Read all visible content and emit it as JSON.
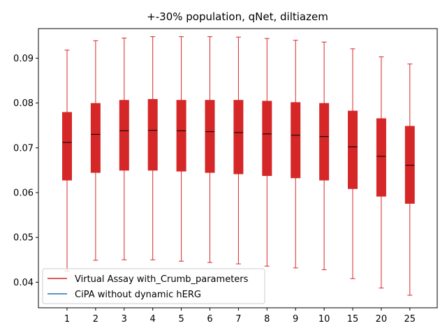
{
  "chart_data": {
    "type": "boxplot",
    "title": "+-30% population, qNet, diltiazem",
    "xlabel": "",
    "ylabel": "",
    "categories": [
      "1",
      "2",
      "3",
      "4",
      "5",
      "6",
      "7",
      "8",
      "9",
      "10",
      "15",
      "20",
      "25"
    ],
    "ylim": [
      0.0343,
      0.0966
    ],
    "yticks": [
      "0.04",
      "0.05",
      "0.06",
      "0.07",
      "0.08",
      "0.09"
    ],
    "grid": false,
    "legend_position": "lower-left",
    "series": [
      {
        "name": "Virtual Assay with_Crumb_parameters",
        "color": "#d62728",
        "boxes": [
          {
            "min": 0.0425,
            "q1": 0.0628,
            "median": 0.0712,
            "q3": 0.0779,
            "max": 0.0918
          },
          {
            "min": 0.0449,
            "q1": 0.0645,
            "median": 0.073,
            "q3": 0.0799,
            "max": 0.0939
          },
          {
            "min": 0.045,
            "q1": 0.065,
            "median": 0.0738,
            "q3": 0.0806,
            "max": 0.0945
          },
          {
            "min": 0.045,
            "q1": 0.065,
            "median": 0.0739,
            "q3": 0.0808,
            "max": 0.0948
          },
          {
            "min": 0.0447,
            "q1": 0.0648,
            "median": 0.0738,
            "q3": 0.0806,
            "max": 0.0948
          },
          {
            "min": 0.0444,
            "q1": 0.0645,
            "median": 0.0736,
            "q3": 0.0806,
            "max": 0.0948
          },
          {
            "min": 0.0441,
            "q1": 0.0642,
            "median": 0.0734,
            "q3": 0.0806,
            "max": 0.0947
          },
          {
            "min": 0.0436,
            "q1": 0.0638,
            "median": 0.0731,
            "q3": 0.0804,
            "max": 0.0944
          },
          {
            "min": 0.0432,
            "q1": 0.0633,
            "median": 0.0728,
            "q3": 0.0801,
            "max": 0.094
          },
          {
            "min": 0.0428,
            "q1": 0.0628,
            "median": 0.0725,
            "q3": 0.0799,
            "max": 0.0936
          },
          {
            "min": 0.0408,
            "q1": 0.0609,
            "median": 0.0702,
            "q3": 0.0782,
            "max": 0.0921
          },
          {
            "min": 0.0387,
            "q1": 0.0592,
            "median": 0.0681,
            "q3": 0.0765,
            "max": 0.0903
          },
          {
            "min": 0.0371,
            "q1": 0.0576,
            "median": 0.0661,
            "q3": 0.0748,
            "max": 0.0887
          }
        ]
      },
      {
        "name": "CiPA without dynamic hERG",
        "color": "#1f77b4",
        "boxes": []
      }
    ]
  }
}
